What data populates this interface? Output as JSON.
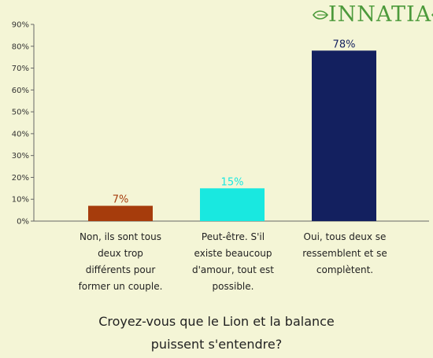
{
  "brand": {
    "name": "INNATIA",
    "accent": "#4c9a3b"
  },
  "chart_data": {
    "type": "bar",
    "title": "Croyez-vous que le Lion et la balance puissent s'entendre?",
    "title_lines": [
      "Croyez-vous que le Lion et la balance",
      "puissent s'entendre?"
    ],
    "categories": [
      "Non, ils sont tous deux trop différents pour former un couple.",
      "Peut-être. S'il existe beaucoup d'amour, tout est possible.",
      "Oui, tous deux se ressemblent et se complètent."
    ],
    "category_lines": [
      [
        "Non, ils sont tous",
        "deux trop",
        "différents pour",
        "former un couple."
      ],
      [
        "Peut-être. S'il",
        "existe beaucoup",
        "d'amour, tout est",
        "possible."
      ],
      [
        "Oui, tous deux se",
        "ressemblent et se",
        "complètent."
      ]
    ],
    "values": [
      7,
      15,
      78
    ],
    "data_labels": [
      "7%",
      "15%",
      "78%"
    ],
    "colors": [
      "#a63c0c",
      "#19e8e0",
      "#13205f"
    ],
    "yticks": [
      "0%",
      "10%",
      "20%",
      "30%",
      "40%",
      "50%",
      "60%",
      "70%",
      "80%",
      "90%"
    ],
    "ylim": [
      0,
      90
    ],
    "grid": false,
    "legend": "none"
  }
}
